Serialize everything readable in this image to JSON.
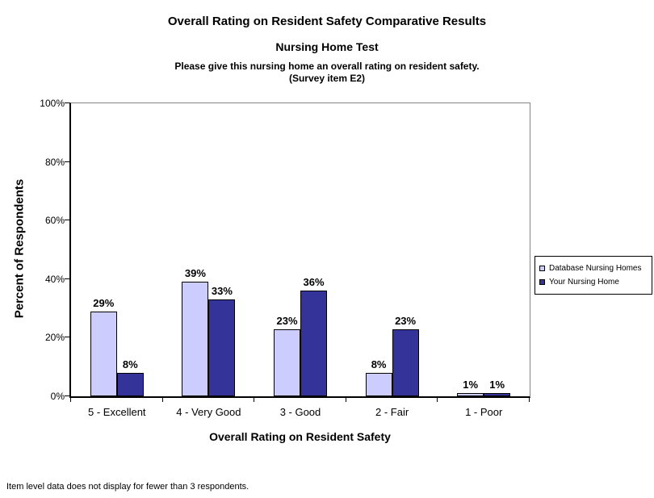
{
  "title": "Overall Rating on Resident Safety Comparative Results",
  "subtitle": "Nursing Home Test",
  "question_line1": "Please give this nursing home an overall rating on resident safety.",
  "question_line2": "(Survey item E2)",
  "footnote": "Item level data does not display for fewer than 3 respondents.",
  "chart_data": {
    "type": "bar",
    "title": "Overall Rating on Resident Safety Comparative Results",
    "categories": [
      "5 - Excellent",
      "4 - Very Good",
      "3 - Good",
      "2 - Fair",
      "1 - Poor"
    ],
    "series": [
      {
        "name": "Database Nursing Homes",
        "color": "#CCCCFF",
        "values": [
          29,
          39,
          23,
          8,
          1
        ]
      },
      {
        "name": "Your Nursing Home",
        "color": "#333399",
        "values": [
          8,
          33,
          36,
          23,
          1
        ]
      }
    ],
    "data_label_suffix": "%",
    "xlabel": "Overall Rating on Resident Safety",
    "ylabel": "Percent of Respondents",
    "ylim": [
      0,
      100
    ],
    "yticks": [
      "0%",
      "20%",
      "40%",
      "60%",
      "80%",
      "100%"
    ],
    "grid": false,
    "legend_position": "right"
  }
}
